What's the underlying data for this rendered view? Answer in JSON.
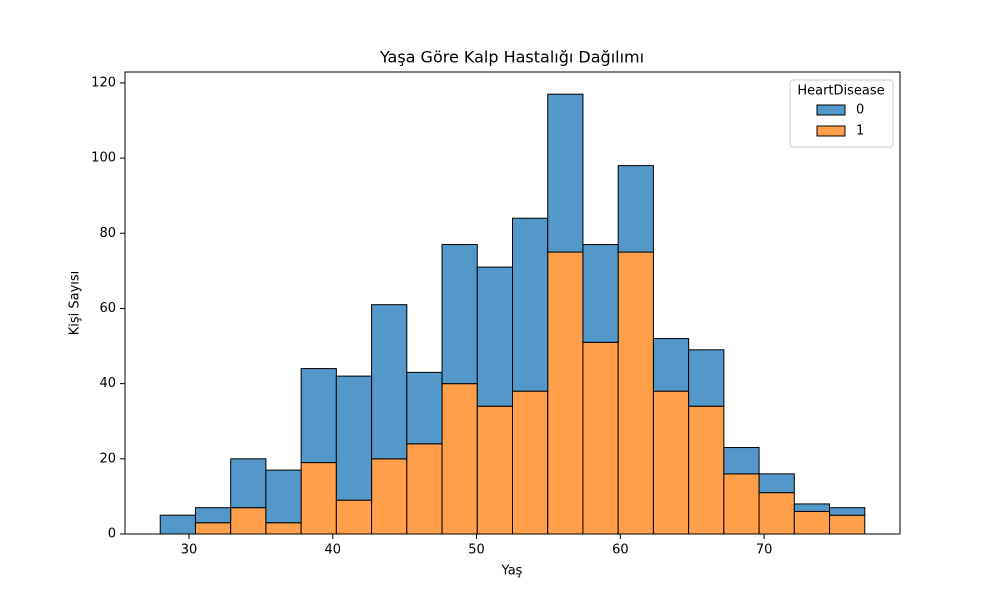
{
  "chart_data": {
    "type": "histogram",
    "title": "Yaşa Göre Kalp Hastalığı Dağılımı",
    "x_label": "Yaş",
    "y_label": "Kişi Sayısı",
    "legend_title": "HeartDisease",
    "legend": "upper right",
    "stacked": true,
    "bins": [
      28,
      30.45,
      32.9,
      35.35,
      37.8,
      40.25,
      42.7,
      45.15,
      47.6,
      50.05,
      52.5,
      54.95,
      57.4,
      59.85,
      62.3,
      64.75,
      67.2,
      69.65,
      72.1,
      74.55,
      77
    ],
    "series": [
      {
        "name": "0",
        "color": "#5497c9",
        "values": [
          5,
          4,
          13,
          14,
          25,
          33,
          41,
          19,
          37,
          37,
          46,
          42,
          26,
          23,
          14,
          15,
          7,
          5,
          2,
          2
        ]
      },
      {
        "name": "1",
        "color": "#ff9f4a",
        "values": [
          0,
          3,
          7,
          3,
          19,
          9,
          20,
          24,
          40,
          34,
          38,
          75,
          51,
          75,
          38,
          34,
          16,
          11,
          6,
          5
        ]
      }
    ],
    "xlim": [
      25.55,
      79.45
    ],
    "ylim": [
      0,
      122.9
    ],
    "xticks": [
      30,
      40,
      50,
      60,
      70
    ],
    "yticks": [
      0,
      20,
      40,
      60,
      80,
      100,
      120
    ]
  }
}
